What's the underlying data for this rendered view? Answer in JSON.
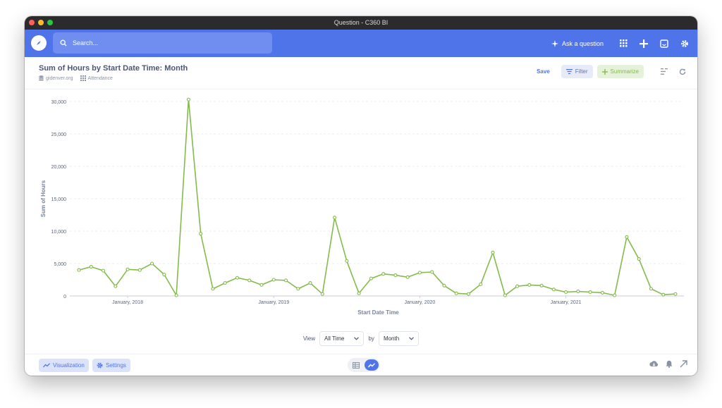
{
  "window": {
    "title": "Question - C360 BI"
  },
  "nav": {
    "search_placeholder": "Search...",
    "ask_label": "Ask a question"
  },
  "question": {
    "title": "Sum of Hours by Start Date Time: Month",
    "database": "gidenver.org",
    "table": "Attendance",
    "save_label": "Save",
    "filter_label": "Filter",
    "summarize_label": "Summarize"
  },
  "controls": {
    "view_label": "View",
    "view_value": "All Time",
    "by_label": "by",
    "by_value": "Month"
  },
  "bottom": {
    "visualization_label": "Visualization",
    "settings_label": "Settings"
  },
  "colors": {
    "accent": "#4f74ea",
    "series": "#84bb4c",
    "summarize": "#84bb4c"
  },
  "chart_data": {
    "type": "line",
    "xlabel": "Start Date Time",
    "ylabel": "Sum of Hours",
    "ylim": [
      0,
      30000
    ],
    "y_ticks": [
      "0",
      "5,000",
      "10,000",
      "15,000",
      "20,000",
      "25,000",
      "30,000"
    ],
    "x_ticks": [
      {
        "label": "January, 2018",
        "index": 4
      },
      {
        "label": "January, 2019",
        "index": 16
      },
      {
        "label": "January, 2020",
        "index": 28
      },
      {
        "label": "January, 2021",
        "index": 40
      }
    ],
    "grid": true,
    "series": [
      {
        "values": [
          4000,
          4500,
          3900,
          1500,
          4100,
          4000,
          5000,
          3300,
          100,
          30300,
          9600,
          1100,
          2000,
          2800,
          2400,
          1700,
          2500,
          2400,
          1100,
          2000,
          300,
          12100,
          5400,
          400,
          2700,
          3400,
          3200,
          2900,
          3600,
          3700,
          1600,
          400,
          300,
          1800,
          6700,
          100,
          1500,
          1700,
          1600,
          1000,
          600,
          700,
          600,
          500,
          100,
          9100,
          5700,
          1100,
          200,
          300
        ]
      }
    ]
  }
}
